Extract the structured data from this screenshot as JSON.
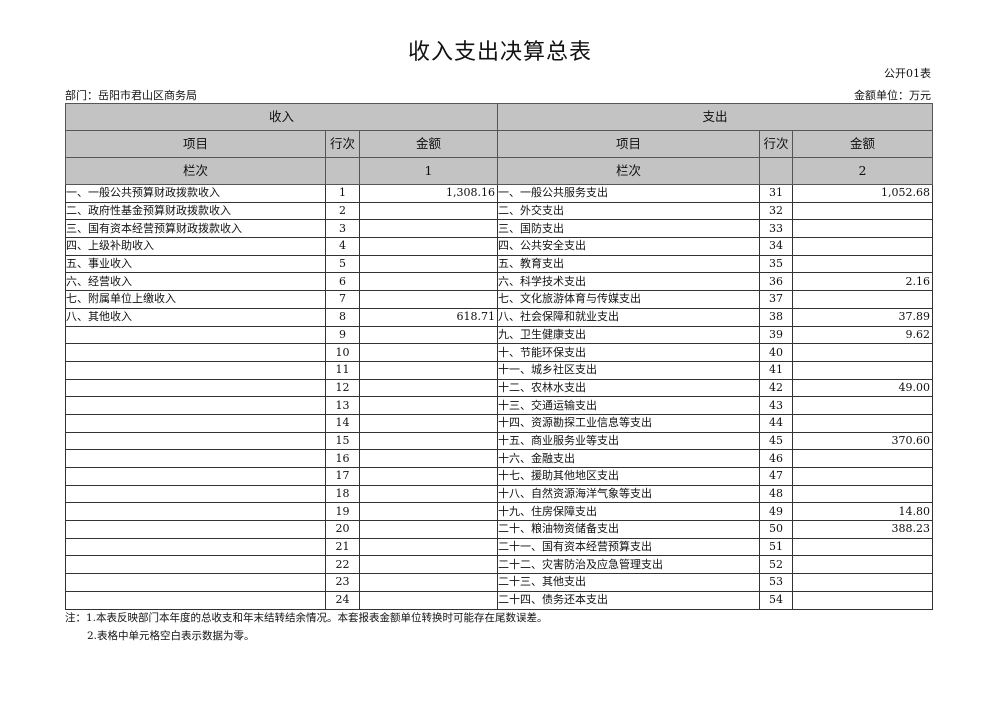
{
  "title": "收入支出决算总表",
  "code": "公开01表",
  "department": "部门：岳阳市君山区商务局",
  "unit": "金额单位：万元",
  "header": {
    "income": "收入",
    "expense": "支出",
    "item": "项目",
    "row_no": "行次",
    "amount": "金额",
    "column_no": "栏次",
    "income_col": "1",
    "expense_col": "2"
  },
  "rows": [
    {
      "in_item": "一、一般公共预算财政拨款收入",
      "in_no": "1",
      "in_amt": "1,308.16",
      "ex_item": "一、一般公共服务支出",
      "ex_no": "31",
      "ex_amt": "1,052.68"
    },
    {
      "in_item": "二、政府性基金预算财政拨款收入",
      "in_no": "2",
      "in_amt": "",
      "ex_item": "二、外交支出",
      "ex_no": "32",
      "ex_amt": ""
    },
    {
      "in_item": "三、国有资本经营预算财政拨款收入",
      "in_no": "3",
      "in_amt": "",
      "ex_item": "三、国防支出",
      "ex_no": "33",
      "ex_amt": ""
    },
    {
      "in_item": "四、上级补助收入",
      "in_no": "4",
      "in_amt": "",
      "ex_item": "四、公共安全支出",
      "ex_no": "34",
      "ex_amt": ""
    },
    {
      "in_item": "五、事业收入",
      "in_no": "5",
      "in_amt": "",
      "ex_item": "五、教育支出",
      "ex_no": "35",
      "ex_amt": ""
    },
    {
      "in_item": "六、经营收入",
      "in_no": "6",
      "in_amt": "",
      "ex_item": "六、科学技术支出",
      "ex_no": "36",
      "ex_amt": "2.16"
    },
    {
      "in_item": "七、附属单位上缴收入",
      "in_no": "7",
      "in_amt": "",
      "ex_item": "七、文化旅游体育与传媒支出",
      "ex_no": "37",
      "ex_amt": ""
    },
    {
      "in_item": "八、其他收入",
      "in_no": "8",
      "in_amt": "618.71",
      "ex_item": "八、社会保障和就业支出",
      "ex_no": "38",
      "ex_amt": "37.89"
    },
    {
      "in_item": "",
      "in_no": "9",
      "in_amt": "",
      "ex_item": "九、卫生健康支出",
      "ex_no": "39",
      "ex_amt": "9.62"
    },
    {
      "in_item": "",
      "in_no": "10",
      "in_amt": "",
      "ex_item": "十、节能环保支出",
      "ex_no": "40",
      "ex_amt": ""
    },
    {
      "in_item": "",
      "in_no": "11",
      "in_amt": "",
      "ex_item": "十一、城乡社区支出",
      "ex_no": "41",
      "ex_amt": ""
    },
    {
      "in_item": "",
      "in_no": "12",
      "in_amt": "",
      "ex_item": "十二、农林水支出",
      "ex_no": "42",
      "ex_amt": "49.00"
    },
    {
      "in_item": "",
      "in_no": "13",
      "in_amt": "",
      "ex_item": "十三、交通运输支出",
      "ex_no": "43",
      "ex_amt": ""
    },
    {
      "in_item": "",
      "in_no": "14",
      "in_amt": "",
      "ex_item": "十四、资源勘探工业信息等支出",
      "ex_no": "44",
      "ex_amt": ""
    },
    {
      "in_item": "",
      "in_no": "15",
      "in_amt": "",
      "ex_item": "十五、商业服务业等支出",
      "ex_no": "45",
      "ex_amt": "370.60"
    },
    {
      "in_item": "",
      "in_no": "16",
      "in_amt": "",
      "ex_item": "十六、金融支出",
      "ex_no": "46",
      "ex_amt": ""
    },
    {
      "in_item": "",
      "in_no": "17",
      "in_amt": "",
      "ex_item": "十七、援助其他地区支出",
      "ex_no": "47",
      "ex_amt": ""
    },
    {
      "in_item": "",
      "in_no": "18",
      "in_amt": "",
      "ex_item": "十八、自然资源海洋气象等支出",
      "ex_no": "48",
      "ex_amt": ""
    },
    {
      "in_item": "",
      "in_no": "19",
      "in_amt": "",
      "ex_item": "十九、住房保障支出",
      "ex_no": "49",
      "ex_amt": "14.80"
    },
    {
      "in_item": "",
      "in_no": "20",
      "in_amt": "",
      "ex_item": "二十、粮油物资储备支出",
      "ex_no": "50",
      "ex_amt": "388.23"
    },
    {
      "in_item": "",
      "in_no": "21",
      "in_amt": "",
      "ex_item": "二十一、国有资本经营预算支出",
      "ex_no": "51",
      "ex_amt": ""
    },
    {
      "in_item": "",
      "in_no": "22",
      "in_amt": "",
      "ex_item": "二十二、灾害防治及应急管理支出",
      "ex_no": "52",
      "ex_amt": ""
    },
    {
      "in_item": "",
      "in_no": "23",
      "in_amt": "",
      "ex_item": "二十三、其他支出",
      "ex_no": "53",
      "ex_amt": ""
    },
    {
      "in_item": "",
      "in_no": "24",
      "in_amt": "",
      "ex_item": "二十四、债务还本支出",
      "ex_no": "54",
      "ex_amt": ""
    }
  ],
  "notes": [
    "注：1.本表反映部门本年度的总收支和年末结转结余情况。本套报表金额单位转换时可能存在尾数误差。",
    "2.表格中单元格空白表示数据为零。"
  ]
}
